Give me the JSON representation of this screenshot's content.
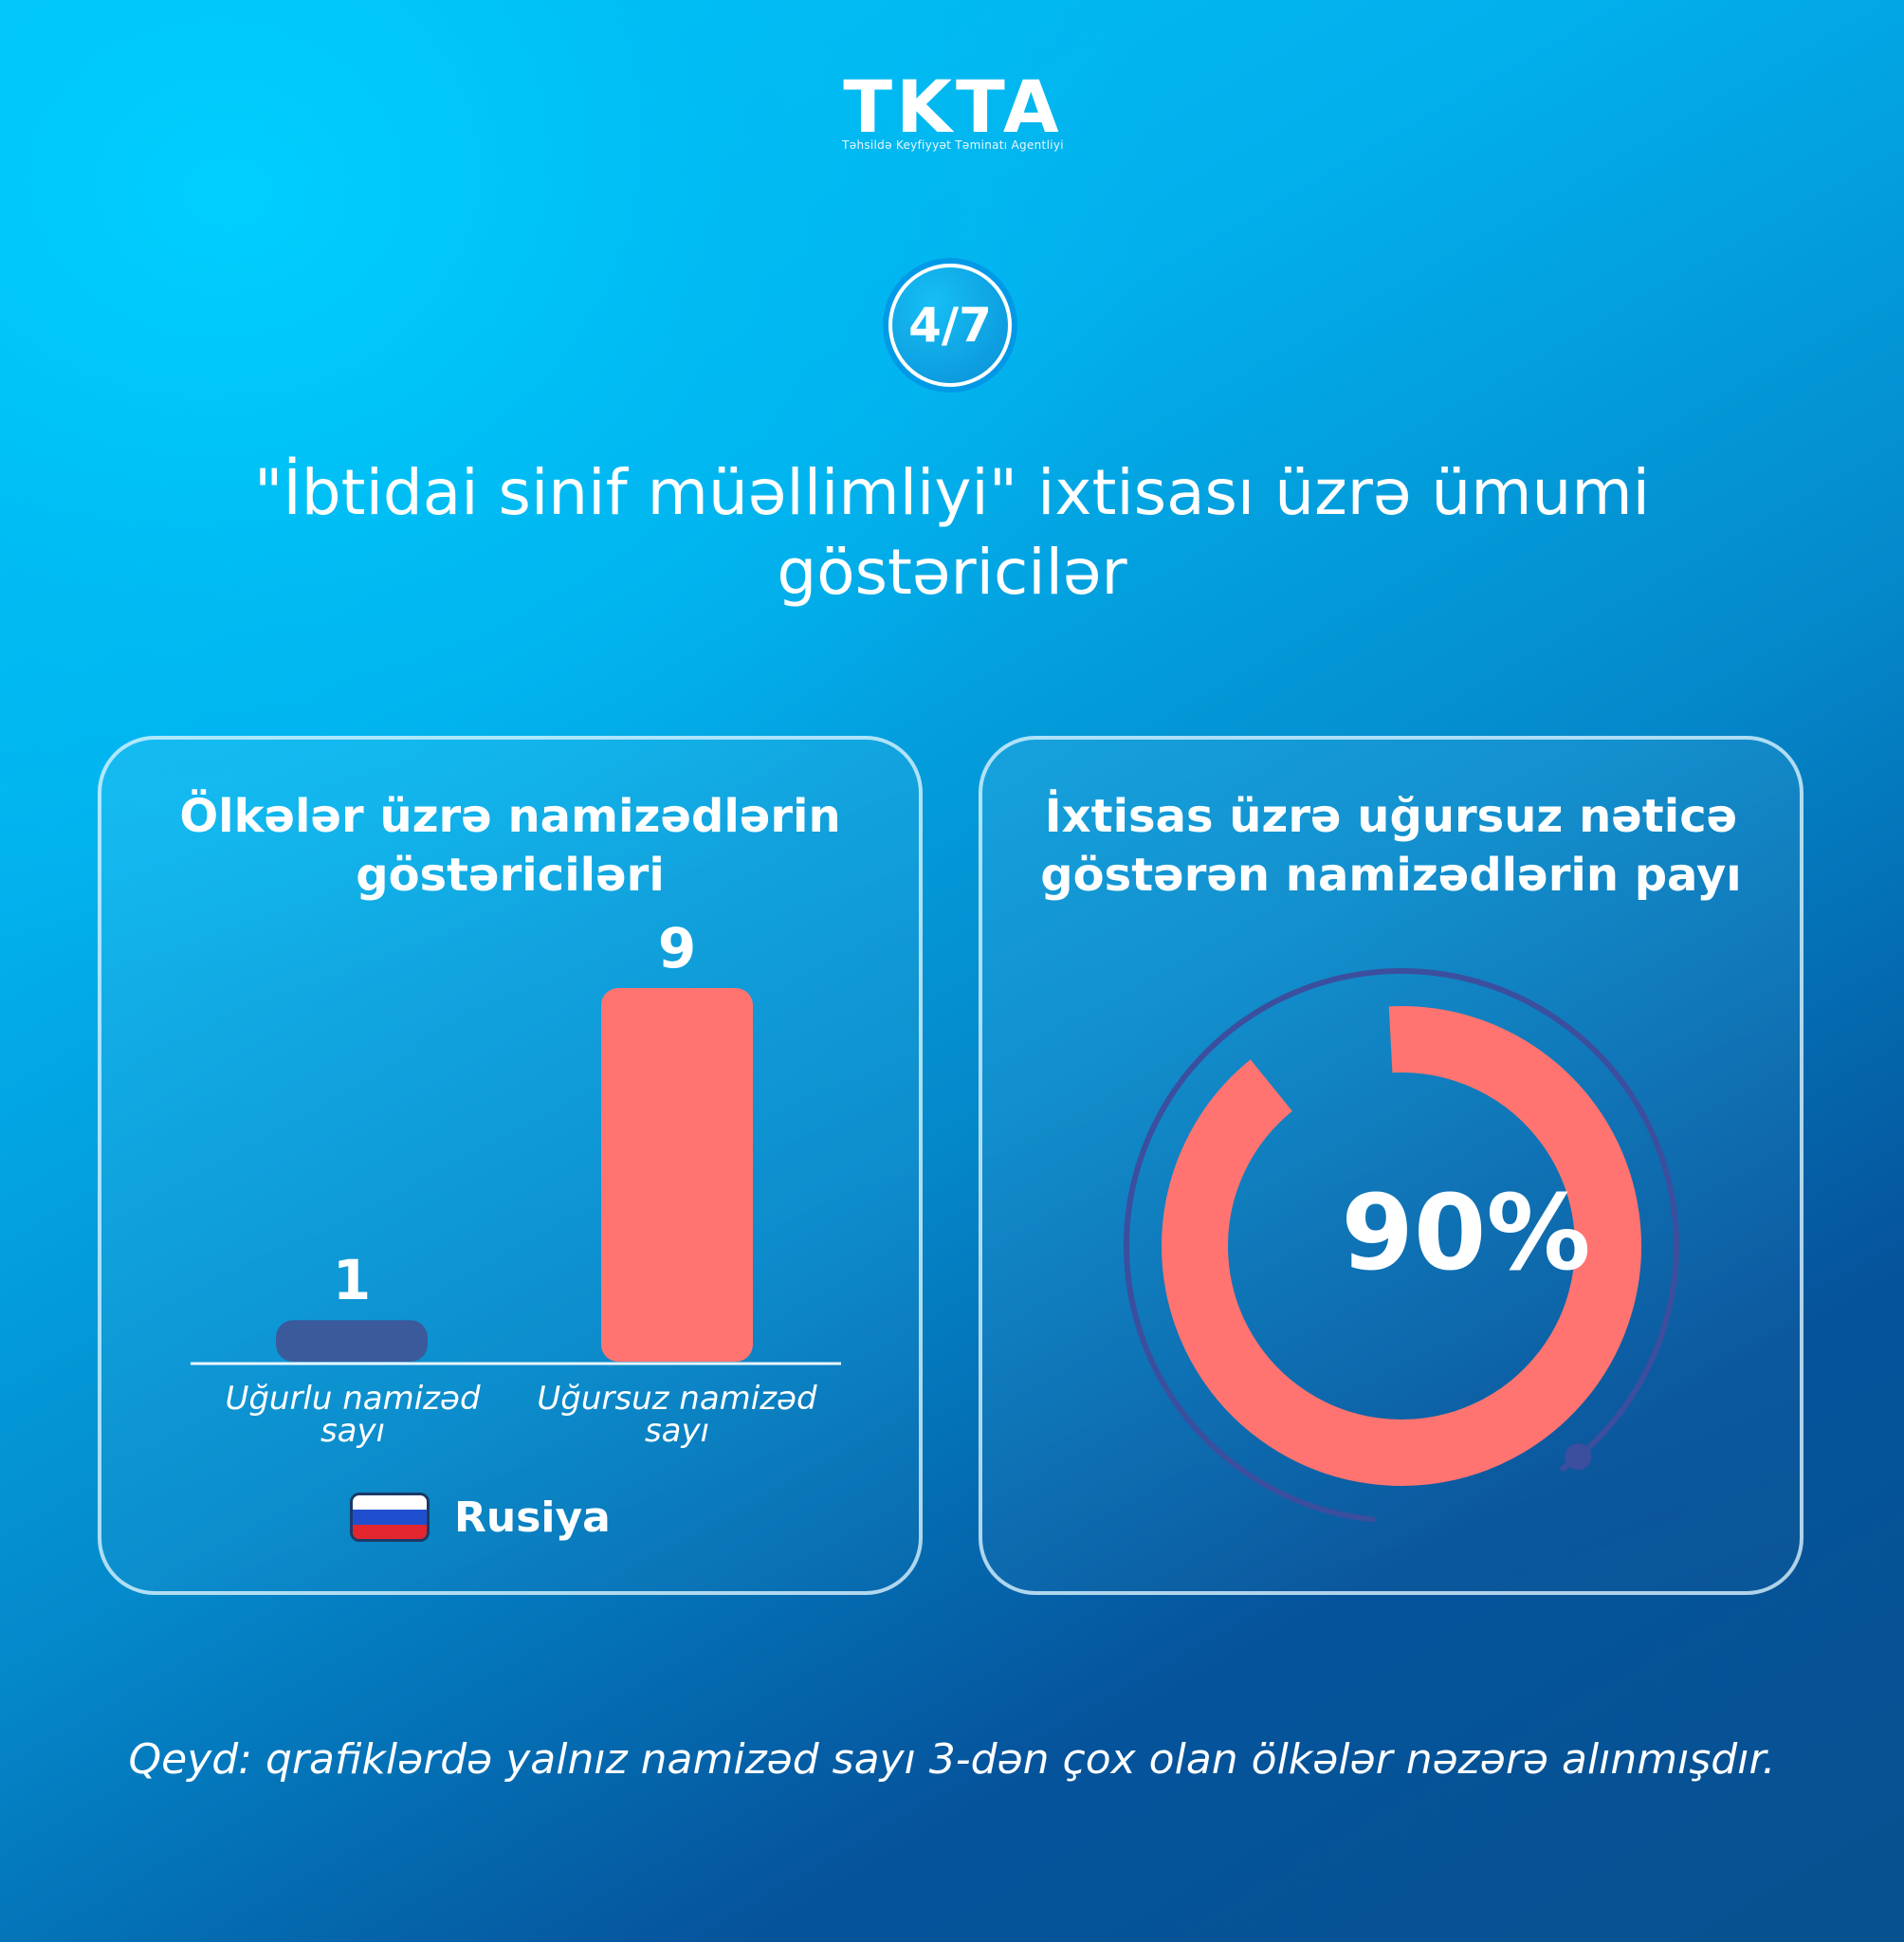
{
  "logo": {
    "text": "TKTA",
    "subtitle": "Təhsildə Keyfiyyət Təminatı Agentliyi"
  },
  "page_indicator": "4/7",
  "title": "\"İbtidai sinif müəllimliyi\" ixtisası üzrə ümumi göstəricilər",
  "note": "Qeyd: qrafiklərdə yalnız namizəd sayı 3-dən çox olan ölkələr nəzərə alınmışdır.",
  "colors": {
    "success": "#3a5a9c",
    "failure": "#ff7470",
    "ring_track": "#3b4f9e"
  },
  "chart_data": [
    {
      "type": "bar",
      "title": "Ölkələr üzrə namizədlərin göstəriciləri",
      "categories": [
        "Uğurlu namizəd sayı",
        "Uğursuz namizəd sayı"
      ],
      "category_lines": [
        [
          "Uğurlu namizəd",
          "sayı"
        ],
        [
          "Uğursuz namizəd",
          "sayı"
        ]
      ],
      "values": [
        1,
        9
      ],
      "bar_colors": [
        "#3a5a9c",
        "#ff7470"
      ],
      "series": [
        {
          "name": "Rusiya",
          "values": [
            1,
            9
          ]
        }
      ],
      "legend": [
        {
          "label": "Rusiya",
          "icon": "russia-flag-icon"
        }
      ],
      "ylim": [
        0,
        9
      ],
      "grid": false
    },
    {
      "type": "pie",
      "title": "İxtisas üzrə uğursuz nəticə göstərən namizədlərin payı",
      "value_percent": 90,
      "label": "90%",
      "color": "#ff7470"
    }
  ]
}
